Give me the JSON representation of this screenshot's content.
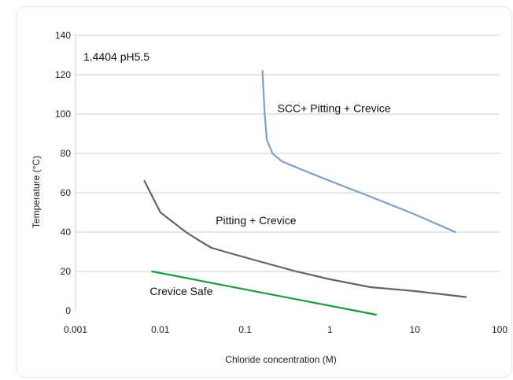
{
  "chart_data": {
    "type": "line",
    "title": "1.4404 pH5.5",
    "xlabel": "Chloride concentration (M)",
    "ylabel": "Temperature (°C)",
    "x_scale": "log",
    "xlim": [
      0.001,
      100
    ],
    "ylim": [
      0,
      140
    ],
    "x_ticks": [
      0.001,
      0.01,
      0.1,
      1,
      10,
      100
    ],
    "x_tick_labels": [
      "0.001",
      "0.01",
      "0.1",
      "1",
      "10",
      "100"
    ],
    "y_ticks": [
      0,
      20,
      40,
      60,
      80,
      100,
      120,
      140
    ],
    "y_tick_labels": [
      "0",
      "20",
      "40",
      "60",
      "80",
      "100",
      "120",
      "140"
    ],
    "grid": "horizontal",
    "colors": {
      "scc": "#7ba1c8",
      "pitting": "#6b615a",
      "crevice": "#1f9a3a",
      "grid": "#cccccc"
    },
    "series": [
      {
        "key": "scc",
        "x": [
          0.16,
          0.17,
          0.18,
          0.21,
          0.27,
          0.45,
          1.0,
          3.0,
          10.0,
          30.0
        ],
        "y": [
          122,
          100,
          87,
          80,
          76,
          72,
          66,
          58,
          49,
          40
        ]
      },
      {
        "key": "pitting",
        "x": [
          0.0065,
          0.01,
          0.02,
          0.028,
          0.04,
          0.07,
          0.15,
          0.4,
          1.0,
          3.0,
          10.0,
          40.0
        ],
        "y": [
          66,
          50,
          40,
          36,
          32,
          29,
          25,
          20,
          16,
          12,
          10,
          7
        ]
      },
      {
        "key": "crevice",
        "x": [
          0.008,
          3.5
        ],
        "y": [
          20,
          -2
        ]
      }
    ],
    "annotations": [
      {
        "text": "SCC+ Pitting + Crevice",
        "x": 0.24,
        "y": 101
      },
      {
        "text": "Pitting + Crevice",
        "x": 0.045,
        "y": 44
      },
      {
        "text": "Crevice Safe",
        "x": 0.0075,
        "y": 8
      }
    ]
  }
}
